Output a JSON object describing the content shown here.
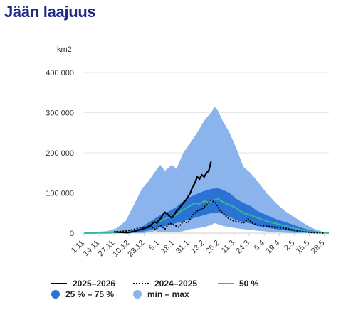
{
  "title": "Jään laajuus",
  "colors": {
    "current": "#000000",
    "previous": "#000000",
    "median": "#3bb3a0",
    "iqr": "#2a72d4",
    "minmax": "#8bb3ec",
    "grid": "#e6e6e6",
    "title": "#1f2b86"
  },
  "chart_data": {
    "type": "area",
    "unit": "km2",
    "ylim": [
      0,
      400000
    ],
    "y_ticks": [
      "0",
      "100 000",
      "200 000",
      "300 000",
      "400 000"
    ],
    "y_tick_values": [
      0,
      100000,
      200000,
      300000,
      400000
    ],
    "x_ticks": [
      "1.11.",
      "14.11.",
      "27.11.",
      "10.12.",
      "23.12.",
      "5.1.",
      "18.1.",
      "31.1.",
      "13.2.",
      "26.2.",
      "11.3.",
      "24.3.",
      "6.4.",
      "19.4.",
      "2.5.",
      "15.5.",
      "28.5."
    ],
    "x_tick_days": [
      0,
      13,
      26,
      39,
      52,
      65,
      78,
      91,
      104,
      117,
      130,
      143,
      156,
      169,
      182,
      195,
      208
    ],
    "x_range_days": [
      0,
      212
    ],
    "legend": [
      {
        "label": "2025–2026",
        "style": "line-solid"
      },
      {
        "label": "2024–2025",
        "style": "line-dotted"
      },
      {
        "label": "50 %",
        "style": "line-median"
      },
      {
        "label": "25 % – 75 %",
        "style": "dot-iqr"
      },
      {
        "label": "min – max",
        "style": "dot-minmax"
      }
    ],
    "series": [
      {
        "name": "min – max",
        "x": [
          0,
          10,
          20,
          28,
          36,
          44,
          50,
          56,
          62,
          66,
          70,
          76,
          80,
          86,
          92,
          98,
          104,
          110,
          113,
          116,
          120,
          126,
          132,
          138,
          144,
          150,
          158,
          166,
          174,
          182,
          190,
          198,
          206,
          212
        ],
        "upper": [
          2000,
          3000,
          5000,
          12000,
          30000,
          75000,
          110000,
          130000,
          155000,
          170000,
          155000,
          170000,
          160000,
          200000,
          225000,
          250000,
          280000,
          300000,
          315000,
          305000,
          280000,
          250000,
          210000,
          165000,
          150000,
          130000,
          100000,
          75000,
          55000,
          40000,
          25000,
          12000,
          4000,
          1000
        ],
        "lower": [
          0,
          0,
          0,
          0,
          0,
          0,
          0,
          2000,
          5000,
          2000,
          2000,
          3000,
          2000,
          5000,
          10000,
          12000,
          15000,
          20000,
          25000,
          22000,
          18000,
          15000,
          12000,
          10000,
          8000,
          6000,
          4000,
          2000,
          1000,
          0,
          0,
          0,
          0,
          0
        ]
      },
      {
        "name": "25 % – 75 %",
        "x": [
          0,
          20,
          36,
          48,
          58,
          66,
          74,
          80,
          86,
          92,
          98,
          104,
          110,
          116,
          120,
          126,
          132,
          138,
          144,
          150,
          158,
          166,
          174,
          182,
          190,
          198,
          206,
          212
        ],
        "upper": [
          0,
          1000,
          4000,
          12000,
          30000,
          45000,
          55000,
          65000,
          80000,
          90000,
          98000,
          105000,
          110000,
          112000,
          108000,
          100000,
          85000,
          75000,
          68000,
          55000,
          45000,
          35000,
          28000,
          20000,
          12000,
          6000,
          2000,
          0
        ],
        "lower": [
          0,
          0,
          0,
          2000,
          8000,
          15000,
          20000,
          25000,
          30000,
          35000,
          40000,
          45000,
          50000,
          52000,
          48000,
          40000,
          32000,
          28000,
          24000,
          18000,
          14000,
          10000,
          7000,
          4000,
          2000,
          1000,
          0,
          0
        ]
      },
      {
        "name": "50 %",
        "x": [
          0,
          20,
          36,
          48,
          58,
          66,
          72,
          78,
          84,
          90,
          96,
          100,
          104,
          108,
          112,
          116,
          120,
          126,
          132,
          138,
          144,
          150,
          158,
          166,
          174,
          182,
          190,
          198,
          206,
          212
        ],
        "values": [
          0,
          500,
          2000,
          8000,
          20000,
          30000,
          38000,
          42000,
          55000,
          65000,
          75000,
          72000,
          80000,
          76000,
          82000,
          85000,
          78000,
          70000,
          62000,
          50000,
          45000,
          38000,
          30000,
          24000,
          18000,
          12000,
          7000,
          3000,
          1000,
          0
        ]
      },
      {
        "name": "2025–2026",
        "x": [
          26,
          32,
          38,
          44,
          50,
          54,
          58,
          61,
          63,
          66,
          68,
          70,
          72,
          74,
          76,
          78,
          80,
          82,
          84,
          86,
          88,
          90,
          92,
          94,
          96,
          98,
          100,
          102,
          104,
          106,
          108,
          110
        ],
        "values": [
          3000,
          2000,
          1000,
          5000,
          10000,
          14000,
          20000,
          28000,
          25000,
          35000,
          45000,
          52000,
          48000,
          42000,
          38000,
          45000,
          55000,
          60000,
          68000,
          75000,
          82000,
          90000,
          100000,
          115000,
          125000,
          140000,
          135000,
          145000,
          140000,
          150000,
          155000,
          178000
        ]
      },
      {
        "name": "2024–2025",
        "x": [
          26,
          36,
          44,
          50,
          54,
          58,
          62,
          66,
          70,
          74,
          78,
          82,
          86,
          90,
          94,
          98,
          102,
          106,
          110,
          114,
          118,
          122,
          126,
          130,
          134,
          138,
          142,
          146,
          150,
          156,
          162,
          168,
          174,
          180,
          186,
          192,
          198,
          204,
          208
        ],
        "values": [
          3000,
          5000,
          10000,
          15000,
          12000,
          18000,
          8000,
          20000,
          10000,
          25000,
          20000,
          15000,
          30000,
          25000,
          45000,
          55000,
          60000,
          70000,
          82000,
          75000,
          55000,
          45000,
          35000,
          30000,
          28000,
          25000,
          35000,
          25000,
          20000,
          18000,
          16000,
          14000,
          12000,
          8000,
          5000,
          3000,
          1000,
          500,
          0
        ]
      }
    ]
  }
}
